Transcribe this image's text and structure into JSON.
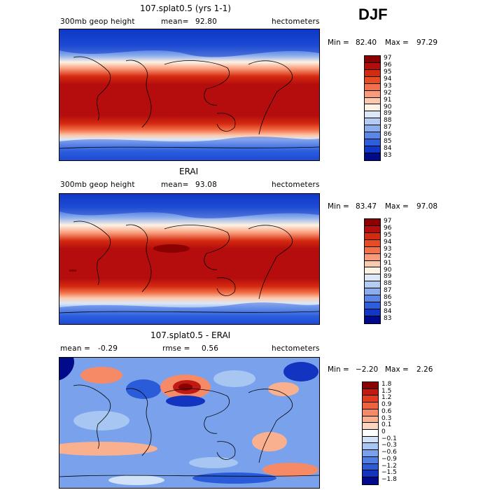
{
  "season": "DJF",
  "panels": [
    {
      "title": "107.splat0.5 (yrs 1-1)",
      "left_label": "300mb geop height",
      "mean_label": "mean=",
      "mean_value": "92.80",
      "units": "hectometers",
      "min_label": "Min =",
      "min_value": "82.40",
      "max_label": "Max =",
      "max_value": "97.29"
    },
    {
      "title": "ERAI",
      "left_label": "300mb geop height",
      "mean_label": "mean=",
      "mean_value": "93.08",
      "units": "hectometers",
      "min_label": "Min =",
      "min_value": "83.47",
      "max_label": "Max =",
      "max_value": "97.08"
    },
    {
      "title": "107.splat0.5 - ERAI",
      "left_label": "mean =",
      "left_value": "-0.29",
      "mean_label": "rmse =",
      "mean_value": "0.56",
      "units": "hectometers",
      "min_label": "Min =",
      "min_value": "−2.20",
      "max_label": "Max =",
      "max_value": "2.26"
    }
  ],
  "chart_data": [
    {
      "type": "heatmap",
      "title": "107.splat0.5 (yrs 1-1)",
      "variable": "300mb geop height",
      "units": "hectometers",
      "mean": 92.8,
      "min": 82.4,
      "max": 97.29,
      "colorbar_levels": [
        "97",
        "96",
        "95",
        "94",
        "93",
        "92",
        "91",
        "90",
        "89",
        "88",
        "87",
        "86",
        "85",
        "84",
        "83"
      ],
      "colorbar_colors": [
        "#8b0000",
        "#b50d0d",
        "#d42a10",
        "#e84c22",
        "#f3714a",
        "#f99b7a",
        "#fbc9ae",
        "#fdf2e3",
        "#dce8f8",
        "#b4ccf2",
        "#8aaded",
        "#5a86e8",
        "#2c5ede",
        "#0f38c8",
        "#000a8a"
      ]
    },
    {
      "type": "heatmap",
      "title": "ERAI",
      "variable": "300mb geop height",
      "units": "hectometers",
      "mean": 93.08,
      "min": 83.47,
      "max": 97.08,
      "colorbar_levels": [
        "97",
        "96",
        "95",
        "94",
        "93",
        "92",
        "91",
        "90",
        "89",
        "88",
        "87",
        "86",
        "85",
        "84",
        "83"
      ],
      "colorbar_colors": [
        "#8b0000",
        "#b50d0d",
        "#d42a10",
        "#e84c22",
        "#f3714a",
        "#f99b7a",
        "#fbc9ae",
        "#fdf2e3",
        "#dce8f8",
        "#b4ccf2",
        "#8aaded",
        "#5a86e8",
        "#2c5ede",
        "#0f38c8",
        "#000a8a"
      ]
    },
    {
      "type": "heatmap",
      "title": "107.splat0.5 - ERAI",
      "units": "hectometers",
      "mean": -0.29,
      "rmse": 0.56,
      "min": -2.2,
      "max": 2.26,
      "colorbar_levels": [
        "1.8",
        "1.5",
        "1.2",
        "0.9",
        "0.6",
        "0.3",
        "0.1",
        "0",
        "−0.1",
        "−0.3",
        "−0.6",
        "−0.9",
        "−1.2",
        "−1.5",
        "−1.8"
      ],
      "colorbar_colors": [
        "#8b0000",
        "#c01a14",
        "#e23b1f",
        "#f0623d",
        "#f68a66",
        "#f9b08f",
        "#fcd5c1",
        "#ffffff",
        "#d2e2f8",
        "#a8c6f2",
        "#7aa2ec",
        "#4f7fe4",
        "#2a5bd8",
        "#1234c0",
        "#000a8a"
      ]
    }
  ]
}
